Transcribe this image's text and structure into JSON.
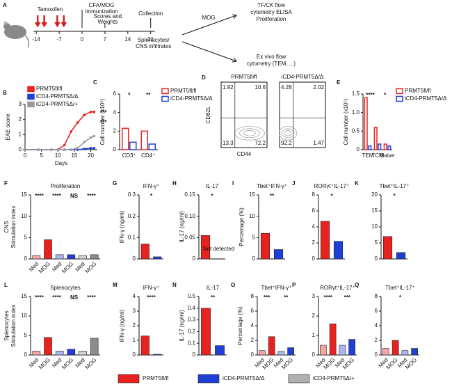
{
  "panel_a": {
    "panel": "A",
    "treatment": "Tamoxifen",
    "immunization": [
      "CFA/MOG",
      "Immunization"
    ],
    "scoring": [
      "Scores and",
      "Weights"
    ],
    "collection": "Collection",
    "samples": [
      "Splenocytes/",
      "CNS infiltrates"
    ],
    "restim": "MOG",
    "assays_mog": [
      "TF/CK flow",
      "cytometry ELISA",
      "Proliferation"
    ],
    "assays_exvivo": [
      "Ex vivo flow",
      "cytometry (TEM, ...)"
    ],
    "ticks": [
      -14,
      -7,
      0,
      7,
      14,
      21
    ]
  },
  "flow_panel": {
    "panel": "D",
    "ylabel": "CD62L",
    "xlabel": "CD44",
    "plots": [
      {
        "title": "PRMT5fl/fl",
        "quadrants": [
          1.92,
          10.6,
          13.3,
          72.2
        ]
      },
      {
        "title": "iCD4-PRMT5Δ/Δ",
        "quadrants": [
          4.28,
          2.02,
          92.2,
          1.47
        ]
      }
    ]
  },
  "legend": [
    {
      "name": "PRMT5fl/fl",
      "color": "#e8231f"
    },
    {
      "name": "iCD4-PRMT5Δ/Δ",
      "color": "#1f3fd6"
    },
    {
      "name": "iCD4-PRMT5Δ/+",
      "color": "#b0b0b0"
    }
  ],
  "chart_data": [
    {
      "type": "line",
      "panel": "B",
      "ylabel": "EAE score",
      "xlabel": "Days",
      "x": [
        0,
        4,
        8,
        10,
        12,
        14,
        16,
        18,
        20,
        21
      ],
      "series": [
        {
          "name": "PRMT5fl/fl",
          "color": "#e8231f",
          "values": [
            0,
            0,
            0,
            0,
            0.3,
            1.2,
            1.8,
            2.3,
            2.5,
            2.5
          ]
        },
        {
          "name": "iCD4-PRMT5Δ/Δ",
          "color": "#1f3fd6",
          "values": [
            0,
            0,
            0,
            0,
            0,
            0,
            0,
            0.05,
            0.1,
            0.1
          ]
        },
        {
          "name": "iCD4-PRMT5Δ/+",
          "color": "#9a9a9a",
          "values": [
            0,
            0,
            0,
            0,
            0,
            0,
            0.1,
            0.5,
            0.8,
            0.9
          ]
        }
      ],
      "xlim": [
        0,
        22
      ],
      "xticks": [
        0,
        5,
        10,
        15,
        20
      ],
      "ylim": [
        0,
        3
      ],
      "yticks": [
        0,
        1,
        2,
        3
      ],
      "annotations": [
        "***",
        "***"
      ]
    },
    {
      "type": "bar",
      "panel": "C",
      "ylabel": "Cell number (x10⁵)",
      "style": "outline",
      "categories": [
        "CD3⁺",
        "CD4⁺"
      ],
      "series": [
        {
          "name": "PRMT5fl/fl",
          "color": "#e8231f",
          "values": [
            2.3,
            2.0
          ]
        },
        {
          "name": "iCD4-PRMT5Δ/Δ",
          "color": "#1f3fd6",
          "values": [
            0.8,
            0.6
          ]
        }
      ],
      "ylim": [
        0,
        6
      ],
      "yticks": [
        0,
        2,
        4,
        6
      ],
      "annotations": [
        "*",
        "**"
      ]
    },
    {
      "type": "bar",
      "panel": "E",
      "ylabel": "Cell number (x10⁵)",
      "style": "outline",
      "categories": [
        "TEM",
        "TCM",
        "Naive"
      ],
      "series": [
        {
          "name": "PRMT5fl/fl",
          "color": "#e8231f",
          "values": [
            1.4,
            0.6,
            0.15
          ]
        },
        {
          "name": "iCD4-PRMT5Δ/Δ",
          "color": "#1f3fd6",
          "values": [
            0.1,
            0.15,
            0.1
          ]
        }
      ],
      "ylim": [
        0,
        1.5
      ],
      "yticks": [
        0,
        0.5,
        {
          "value": 1,
          "label": "1.0"
        },
        1.5
      ],
      "annotations": [
        "****",
        "*"
      ]
    },
    {
      "type": "bar",
      "panel": "F",
      "title": "Proliferation",
      "row_label": "CNS",
      "ylabel": "Stimulation index",
      "categories": [
        "Med",
        "MOG",
        "Med",
        "MOG",
        "Med",
        "MOG"
      ],
      "values": [
        0.8,
        4.5,
        1.0,
        1.0,
        0.8,
        1.0
      ],
      "colors": [
        "#f4a6a4",
        "#e8231f",
        "#a9b6ef",
        "#1f3fd6",
        "#d0d0d0",
        "#8c8c8c"
      ],
      "ylim": [
        0,
        15
      ],
      "yticks": [
        0,
        5,
        10,
        15
      ],
      "annotations": [
        "****",
        "****",
        "NS",
        "****"
      ]
    },
    {
      "type": "bar",
      "panel": "G",
      "title": "IFN-γ⁺",
      "ylabel": "IFN-γ (ng/ml)",
      "values": [
        0.07,
        0.01
      ],
      "colors": [
        "#e8231f",
        "#1f3fd6"
      ],
      "ylim": [
        0,
        0.3
      ],
      "yticks": [
        0,
        0.1,
        0.2,
        0.3
      ],
      "annotations": [
        "*"
      ]
    },
    {
      "type": "bar",
      "panel": "H",
      "title": "IL-17",
      "ylabel": "IL-17 (ng/ml)",
      "values": [
        0.055
      ],
      "colors": [
        "#e8231f"
      ],
      "note": "Not detected",
      "ylim": [
        0,
        0.15
      ],
      "yticks": [
        0,
        0.05,
        {
          "value": 0.1,
          "label": "0.10"
        },
        0.15
      ],
      "annotations": [
        "*"
      ]
    },
    {
      "type": "bar",
      "panel": "I",
      "title": "Tbet⁺IFN-γ⁺",
      "ylabel": "Percentage (%)",
      "values": [
        6,
        2.2
      ],
      "colors": [
        "#e8231f",
        "#1f3fd6"
      ],
      "ylim": [
        0,
        15
      ],
      "yticks": [
        0,
        5,
        10,
        15
      ],
      "annotations": [
        "**"
      ]
    },
    {
      "type": "bar",
      "panel": "J",
      "title": "RORγt⁺IL-17⁺",
      "values": [
        4.7,
        2.2
      ],
      "colors": [
        "#e8231f",
        "#1f3fd6"
      ],
      "ylim": [
        0,
        8
      ],
      "yticks": [
        0,
        2,
        4,
        6,
        8
      ],
      "annotations": [
        "*"
      ]
    },
    {
      "type": "bar",
      "panel": "K",
      "title": "Tbet⁺IL-17⁺",
      "values": [
        7,
        2
      ],
      "colors": [
        "#e8231f",
        "#1f3fd6"
      ],
      "ylim": [
        0,
        20
      ],
      "yticks": [
        0,
        5,
        10,
        15,
        20
      ],
      "annotations": [
        "*"
      ]
    },
    {
      "type": "bar",
      "panel": "L",
      "title": "Splenocytes",
      "row_label": "Splenocytes",
      "ylabel": "Stimulation index",
      "categories": [
        "Med",
        "MOG",
        "Med",
        "MOG",
        "Med",
        "MOG"
      ],
      "values": [
        1.0,
        4.5,
        1.0,
        1.5,
        1.0,
        4.3
      ],
      "colors": [
        "#f4a6a4",
        "#e8231f",
        "#a9b6ef",
        "#1f3fd6",
        "#d0d0d0",
        "#8c8c8c"
      ],
      "ylim": [
        0,
        15
      ],
      "yticks": [
        0,
        5,
        10,
        15
      ],
      "annotations": [
        "****",
        "****",
        "NS",
        "****"
      ]
    },
    {
      "type": "bar",
      "panel": "M",
      "title": "IFN-γ⁺",
      "ylabel": "IFN-γ (ng/ml)",
      "values": [
        1.3,
        0.05
      ],
      "colors": [
        "#e8231f",
        "#1f3fd6"
      ],
      "ylim": [
        0,
        4
      ],
      "yticks": [
        0,
        1,
        2,
        3,
        4
      ],
      "annotations": [
        "****"
      ]
    },
    {
      "type": "bar",
      "panel": "N",
      "title": "IL-17",
      "ylabel": "IL-17 (ng/ml)",
      "values": [
        0.4,
        0.08
      ],
      "colors": [
        "#e8231f",
        "#1f3fd6"
      ],
      "ylim": [
        0,
        0.5
      ],
      "yticks": [
        0,
        0.1,
        0.2,
        0.3,
        0.4,
        0.5
      ],
      "annotations": [
        "**"
      ]
    },
    {
      "type": "bar",
      "panel": "O",
      "title": "Tbet⁺IFN-γ⁺",
      "ylabel": "Percentage (%)",
      "categories": [
        "Med",
        "MOG",
        "Med",
        "MOG"
      ],
      "values": [
        0.6,
        2.5,
        0.5,
        1.0
      ],
      "colors": [
        "#f4a6a4",
        "#e8231f",
        "#a9b6ef",
        "#1f3fd6"
      ],
      "ylim": [
        0,
        8
      ],
      "yticks": [
        0,
        2,
        4,
        6,
        8
      ],
      "annotations": [
        "***",
        "**"
      ]
    },
    {
      "type": "bar",
      "panel": "P",
      "title": "RORγt⁺IL-17⁺",
      "categories": [
        "Med",
        "MOG",
        "Med",
        "MOG"
      ],
      "values": [
        0.5,
        1.6,
        0.5,
        0.8
      ],
      "colors": [
        "#f4a6a4",
        "#e8231f",
        "#a9b6ef",
        "#1f3fd6"
      ],
      "ylim": [
        0,
        3
      ],
      "yticks": [
        0,
        1,
        2,
        3
      ],
      "annotations": [
        "****",
        "***"
      ]
    },
    {
      "type": "bar",
      "panel": "Q",
      "title": "Tbet⁺IL-17⁺",
      "categories": [
        "Med",
        "MOG",
        "Med",
        "MOG"
      ],
      "values": [
        0.9,
        2.0,
        0.6,
        0.9
      ],
      "colors": [
        "#f4a6a4",
        "#e8231f",
        "#a9b6ef",
        "#1f3fd6"
      ],
      "ylim": [
        0,
        8
      ],
      "yticks": [
        0,
        2,
        4,
        6,
        8
      ],
      "annotations": [
        "*"
      ]
    }
  ]
}
